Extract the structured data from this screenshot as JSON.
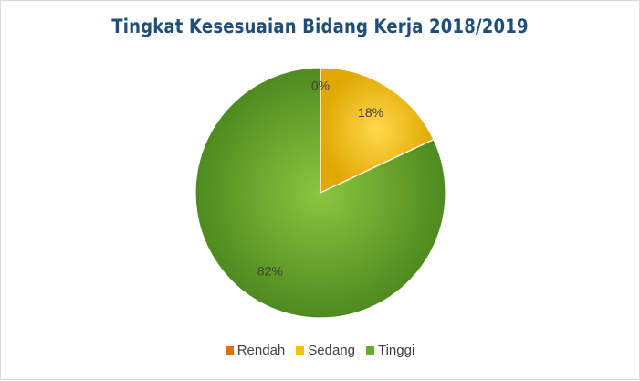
{
  "chart_data": {
    "type": "pie",
    "title": "Tingkat Kesesuaian Bidang Kerja 2018/2019",
    "categories": [
      "Rendah",
      "Sedang",
      "Tinggi"
    ],
    "values": [
      0,
      18,
      82
    ],
    "labels": [
      "0%",
      "18%",
      "82%"
    ],
    "colors": [
      "#e46c0a",
      "#ffc000",
      "#6aa92f"
    ],
    "legend_position": "bottom"
  },
  "legend": {
    "items": [
      {
        "label": "Rendah",
        "color": "#e46c0a"
      },
      {
        "label": "Sedang",
        "color": "#ffc000"
      },
      {
        "label": "Tinggi",
        "color": "#6aa92f"
      }
    ]
  }
}
